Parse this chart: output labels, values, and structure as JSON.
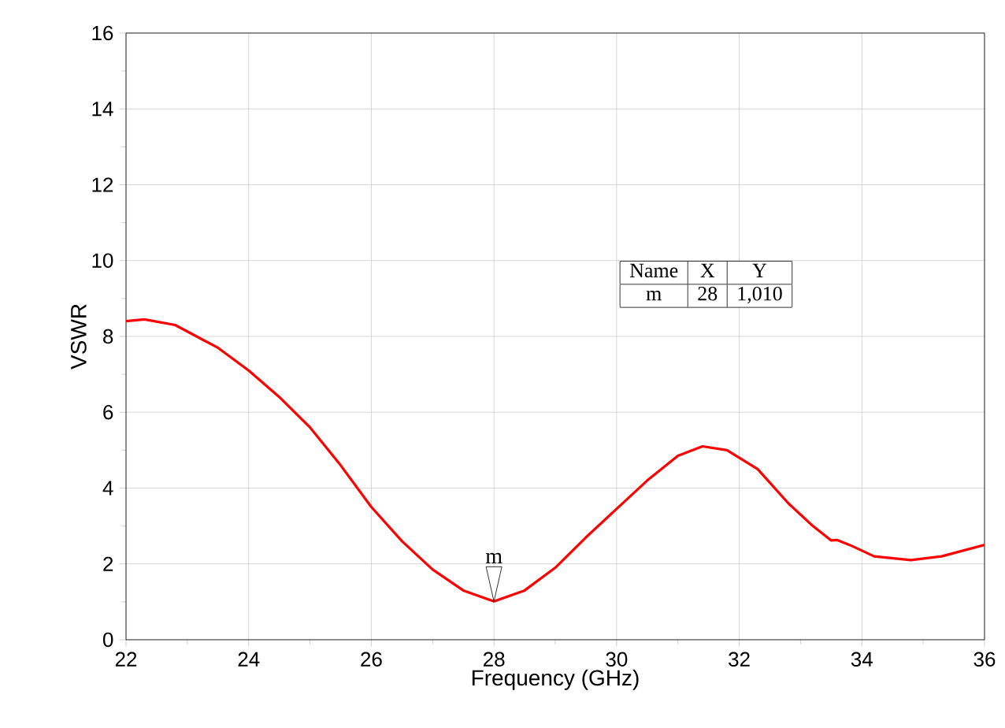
{
  "chart_data": {
    "type": "line",
    "xlabel": "Frequency (GHz)",
    "ylabel": "VSWR",
    "xlim": [
      22,
      36
    ],
    "xticks": [
      22,
      24,
      26,
      28,
      30,
      32,
      34,
      36
    ],
    "ylim": [
      0,
      16
    ],
    "yticks": [
      0,
      2,
      4,
      6,
      8,
      10,
      12,
      14,
      16
    ],
    "grid": true,
    "marker": "none",
    "line_style": "solid",
    "annotations": [
      {
        "text": "m",
        "x": 28,
        "y": 1.01
      },
      "Name",
      "X",
      "Y",
      "m",
      "28",
      "1,010"
    ],
    "series": [
      {
        "color": "#ff0000",
        "x": [
          22,
          22.3,
          22.8,
          23.5,
          24,
          24.5,
          25,
          25.5,
          26,
          26.5,
          27,
          27.5,
          28,
          28.5,
          29,
          29.5,
          30,
          30.5,
          31,
          31.4,
          31.8,
          32.3,
          32.8,
          33.2,
          33.5,
          33.6,
          33.8,
          34.2,
          34.8,
          35.3,
          36
        ],
        "values": [
          8.4,
          8.45,
          8.3,
          7.7,
          7.1,
          6.4,
          5.6,
          4.6,
          3.5,
          2.6,
          1.85,
          1.3,
          1.01,
          1.3,
          1.9,
          2.7,
          3.45,
          4.2,
          4.85,
          5.1,
          5.0,
          4.5,
          3.6,
          3.0,
          2.62,
          2.63,
          2.5,
          2.2,
          2.1,
          2.2,
          2.5
        ]
      }
    ]
  }
}
